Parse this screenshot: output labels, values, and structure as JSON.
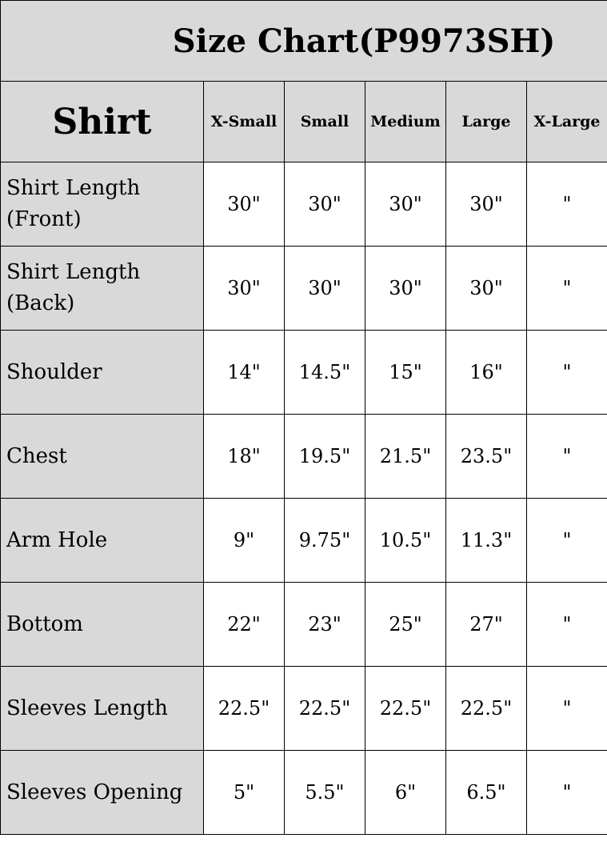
{
  "title": "Size Chart(P9973SH)",
  "header": {
    "category": "Shirt",
    "sizes": [
      "X-Small",
      "Small",
      "Medium",
      "Large",
      "X-Large"
    ]
  },
  "rows": [
    {
      "label_line1": "Shirt Length",
      "label_line2": "(Front)",
      "values": [
        "30\"",
        "30\"",
        "30\"",
        "30\"",
        "\""
      ]
    },
    {
      "label_line1": "Shirt Length",
      "label_line2": "(Back)",
      "values": [
        "30\"",
        "30\"",
        "30\"",
        "30\"",
        "\""
      ]
    },
    {
      "label_line1": "Shoulder",
      "label_line2": "",
      "values": [
        "14\"",
        "14.5\"",
        "15\"",
        "16\"",
        "\""
      ]
    },
    {
      "label_line1": "Chest",
      "label_line2": "",
      "values": [
        "18\"",
        "19.5\"",
        "21.5\"",
        "23.5\"",
        "\""
      ]
    },
    {
      "label_line1": "Arm Hole",
      "label_line2": "",
      "values": [
        "9\"",
        "9.75\"",
        "10.5\"",
        "11.3\"",
        "\""
      ]
    },
    {
      "label_line1": "Bottom",
      "label_line2": "",
      "values": [
        "22\"",
        "23\"",
        "25\"",
        "27\"",
        "\""
      ]
    },
    {
      "label_line1": "Sleeves Length",
      "label_line2": "",
      "values": [
        "22.5\"",
        "22.5\"",
        "22.5\"",
        "22.5\"",
        "\""
      ]
    },
    {
      "label_line1": "Sleeves Opening",
      "label_line2": "",
      "values": [
        "5\"",
        "5.5\"",
        "6\"",
        "6.5\"",
        "\""
      ]
    }
  ],
  "colors": {
    "header_bg": "#d9d9d9",
    "cell_bg": "#ffffff",
    "border": "#000000"
  }
}
